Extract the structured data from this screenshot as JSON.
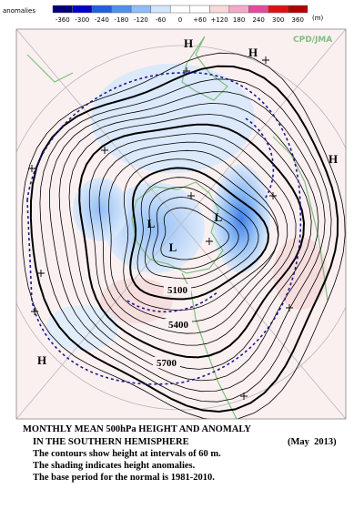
{
  "legend": {
    "label": "anomalies",
    "unit": "(m)",
    "ticks": [
      "-360",
      "-300",
      "-240",
      "-180",
      "-120",
      "-60",
      "0",
      "+60",
      "+120",
      "180",
      "240",
      "300",
      "360"
    ],
    "colors": [
      "#00007a",
      "#0000c8",
      "#1f5fe6",
      "#4f8fef",
      "#8fbdf6",
      "#d2e5fb",
      "#ffffff",
      "#ffffff",
      "#f9d8d8",
      "#f5a9c6",
      "#e8489c",
      "#e01010",
      "#b00000"
    ]
  },
  "source": "CPD/JMA",
  "highs": [
    "H",
    "H",
    "H",
    "H"
  ],
  "lows": [
    "L",
    "L",
    "L"
  ],
  "contour_labels": [
    "5100",
    "5400",
    "5700"
  ],
  "caption": {
    "title": "MONTHLY MEAN 500hPa HEIGHT AND ANOMALY",
    "subtitle": "IN THE SOUTHERN HEMISPHERE",
    "date": "(May  2013)",
    "lines": [
      "The contours show height at intervals of 60 m.",
      "The shading indicates height anomalies.",
      "The base period for the normal is 1981-2010."
    ]
  }
}
